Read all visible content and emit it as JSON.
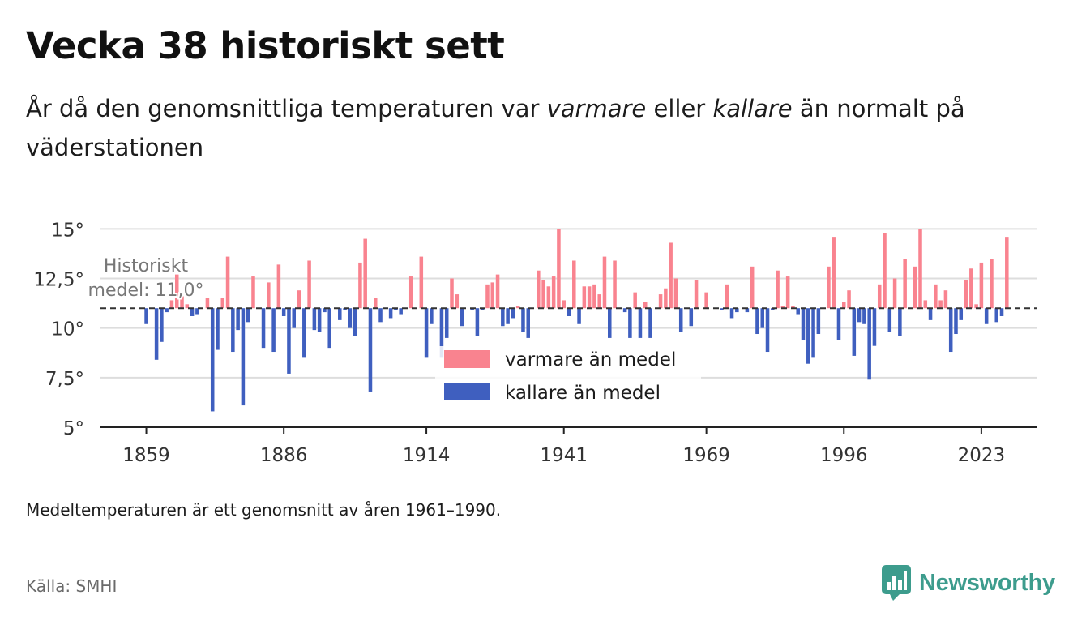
{
  "header": {
    "title": "Vecka 38 historiskt sett",
    "subtitle_part1": "År då den genomsnittliga temperaturen var ",
    "subtitle_warm": "varmare",
    "subtitle_part2": " eller ",
    "subtitle_cold": "kallare",
    "subtitle_part3": " än normalt på väderstationen"
  },
  "footer": {
    "note": "Medeltemperaturen är ett genomsnitt av åren 1961–1990.",
    "source": "Källa: SMHI",
    "brand": "Newsworthy"
  },
  "colors": {
    "warm": "#f9838f",
    "cold": "#3f5fbf",
    "brand": "#3d9c8d"
  },
  "chart_data": {
    "type": "bar",
    "baseline": 11.0,
    "baseline_label_line1": "Historiskt",
    "baseline_label_line2": "medel: 11,0°",
    "ylim": [
      5,
      15.3
    ],
    "xlim": [
      1850,
      2034
    ],
    "yticks": [
      5,
      7.5,
      10,
      12.5,
      15
    ],
    "ytick_labels": [
      "5°",
      "7,5°",
      "10°",
      "12,5°",
      "15°"
    ],
    "xticks": [
      1859,
      1886,
      1914,
      1941,
      1969,
      1996,
      2023
    ],
    "xtick_labels": [
      "1859",
      "1886",
      "1914",
      "1941",
      "1969",
      "1996",
      "2023"
    ],
    "legend": [
      "varmare än medel",
      "kallare än medel"
    ],
    "legend_position": "bottom-center",
    "grid": true,
    "x_start": 1859,
    "values": [
      10.2,
      11.0,
      8.4,
      9.3,
      10.8,
      11.4,
      12.7,
      11.6,
      11.2,
      10.6,
      10.7,
      11.0,
      11.5,
      5.8,
      8.9,
      11.5,
      13.6,
      8.8,
      9.9,
      6.1,
      10.3,
      12.6,
      11.0,
      9.0,
      12.3,
      8.8,
      13.2,
      10.6,
      7.7,
      10.0,
      11.9,
      8.5,
      13.4,
      9.9,
      9.8,
      10.8,
      9.0,
      11.0,
      10.4,
      10.9,
      10.0,
      9.6,
      13.3,
      14.5,
      6.8,
      11.5,
      10.3,
      11.0,
      10.5,
      10.9,
      10.7,
      11.0,
      12.6,
      11.0,
      13.6,
      8.5,
      10.2,
      11.0,
      8.5,
      9.5,
      12.5,
      11.7,
      10.1,
      11.0,
      10.9,
      9.6,
      10.9,
      12.2,
      12.3,
      12.7,
      10.1,
      10.2,
      10.5,
      11.1,
      9.8,
      9.5,
      11.0,
      12.9,
      12.4,
      12.1,
      12.6,
      15.0,
      11.4,
      10.6,
      13.4,
      10.2,
      12.1,
      12.1,
      12.2,
      11.7,
      13.6,
      9.5,
      13.4,
      11.0,
      10.8,
      9.5,
      11.8,
      9.5,
      11.3,
      9.5,
      11.0,
      11.7,
      12.0,
      14.3,
      12.5,
      9.8,
      11.0,
      10.1,
      12.4,
      11.0,
      11.8,
      11.0,
      11.0,
      10.9,
      12.2,
      10.5,
      10.8,
      11.0,
      10.8,
      13.1,
      9.7,
      10.0,
      8.8,
      10.9,
      12.9,
      11.1,
      12.6,
      11.1,
      10.7,
      9.4,
      8.2,
      8.5,
      9.7,
      11.0,
      13.1,
      14.6,
      9.4,
      11.3,
      11.9,
      8.6,
      10.3,
      10.2,
      7.4,
      9.1,
      12.2,
      14.8,
      9.8,
      12.5,
      9.6,
      13.5,
      11.0,
      13.1,
      15.0,
      11.4,
      10.4,
      12.2,
      11.4,
      11.9,
      8.8,
      9.7,
      10.4,
      12.4,
      13.0,
      11.2,
      13.3,
      10.2,
      13.5,
      10.3,
      10.6,
      14.6
    ]
  }
}
